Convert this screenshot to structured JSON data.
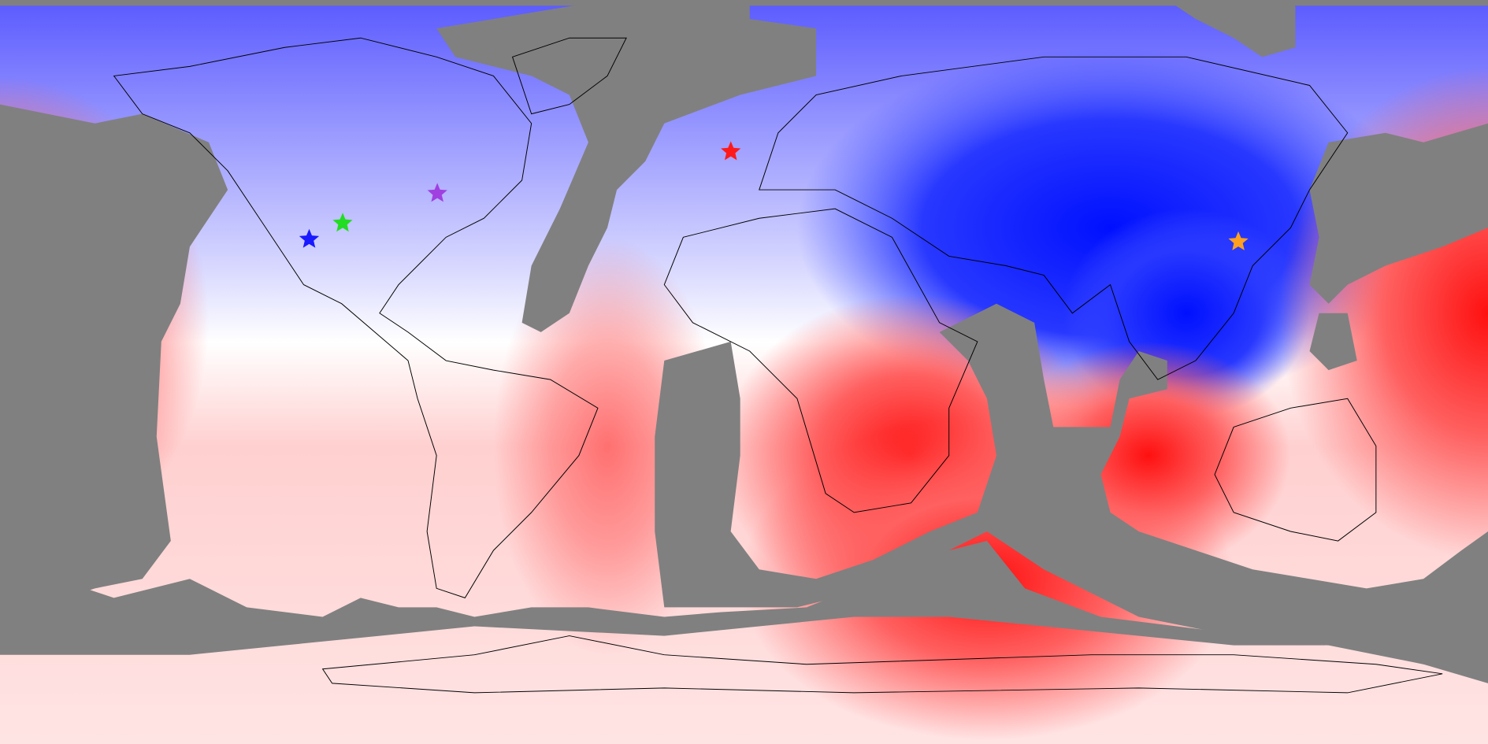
{
  "markers": [
    {
      "color": "#1a1aff",
      "lon": -105.2,
      "lat": 32.1
    },
    {
      "color": "#22dd22",
      "lon": -97.1,
      "lat": 36.0
    },
    {
      "color": "#a040e0",
      "lon": -74.2,
      "lat": 43.2
    },
    {
      "color": "#ff1a1a",
      "lon": -3.2,
      "lat": 53.3
    },
    {
      "color": "#ffa020",
      "lon": 119.6,
      "lat": 31.5
    }
  ]
}
